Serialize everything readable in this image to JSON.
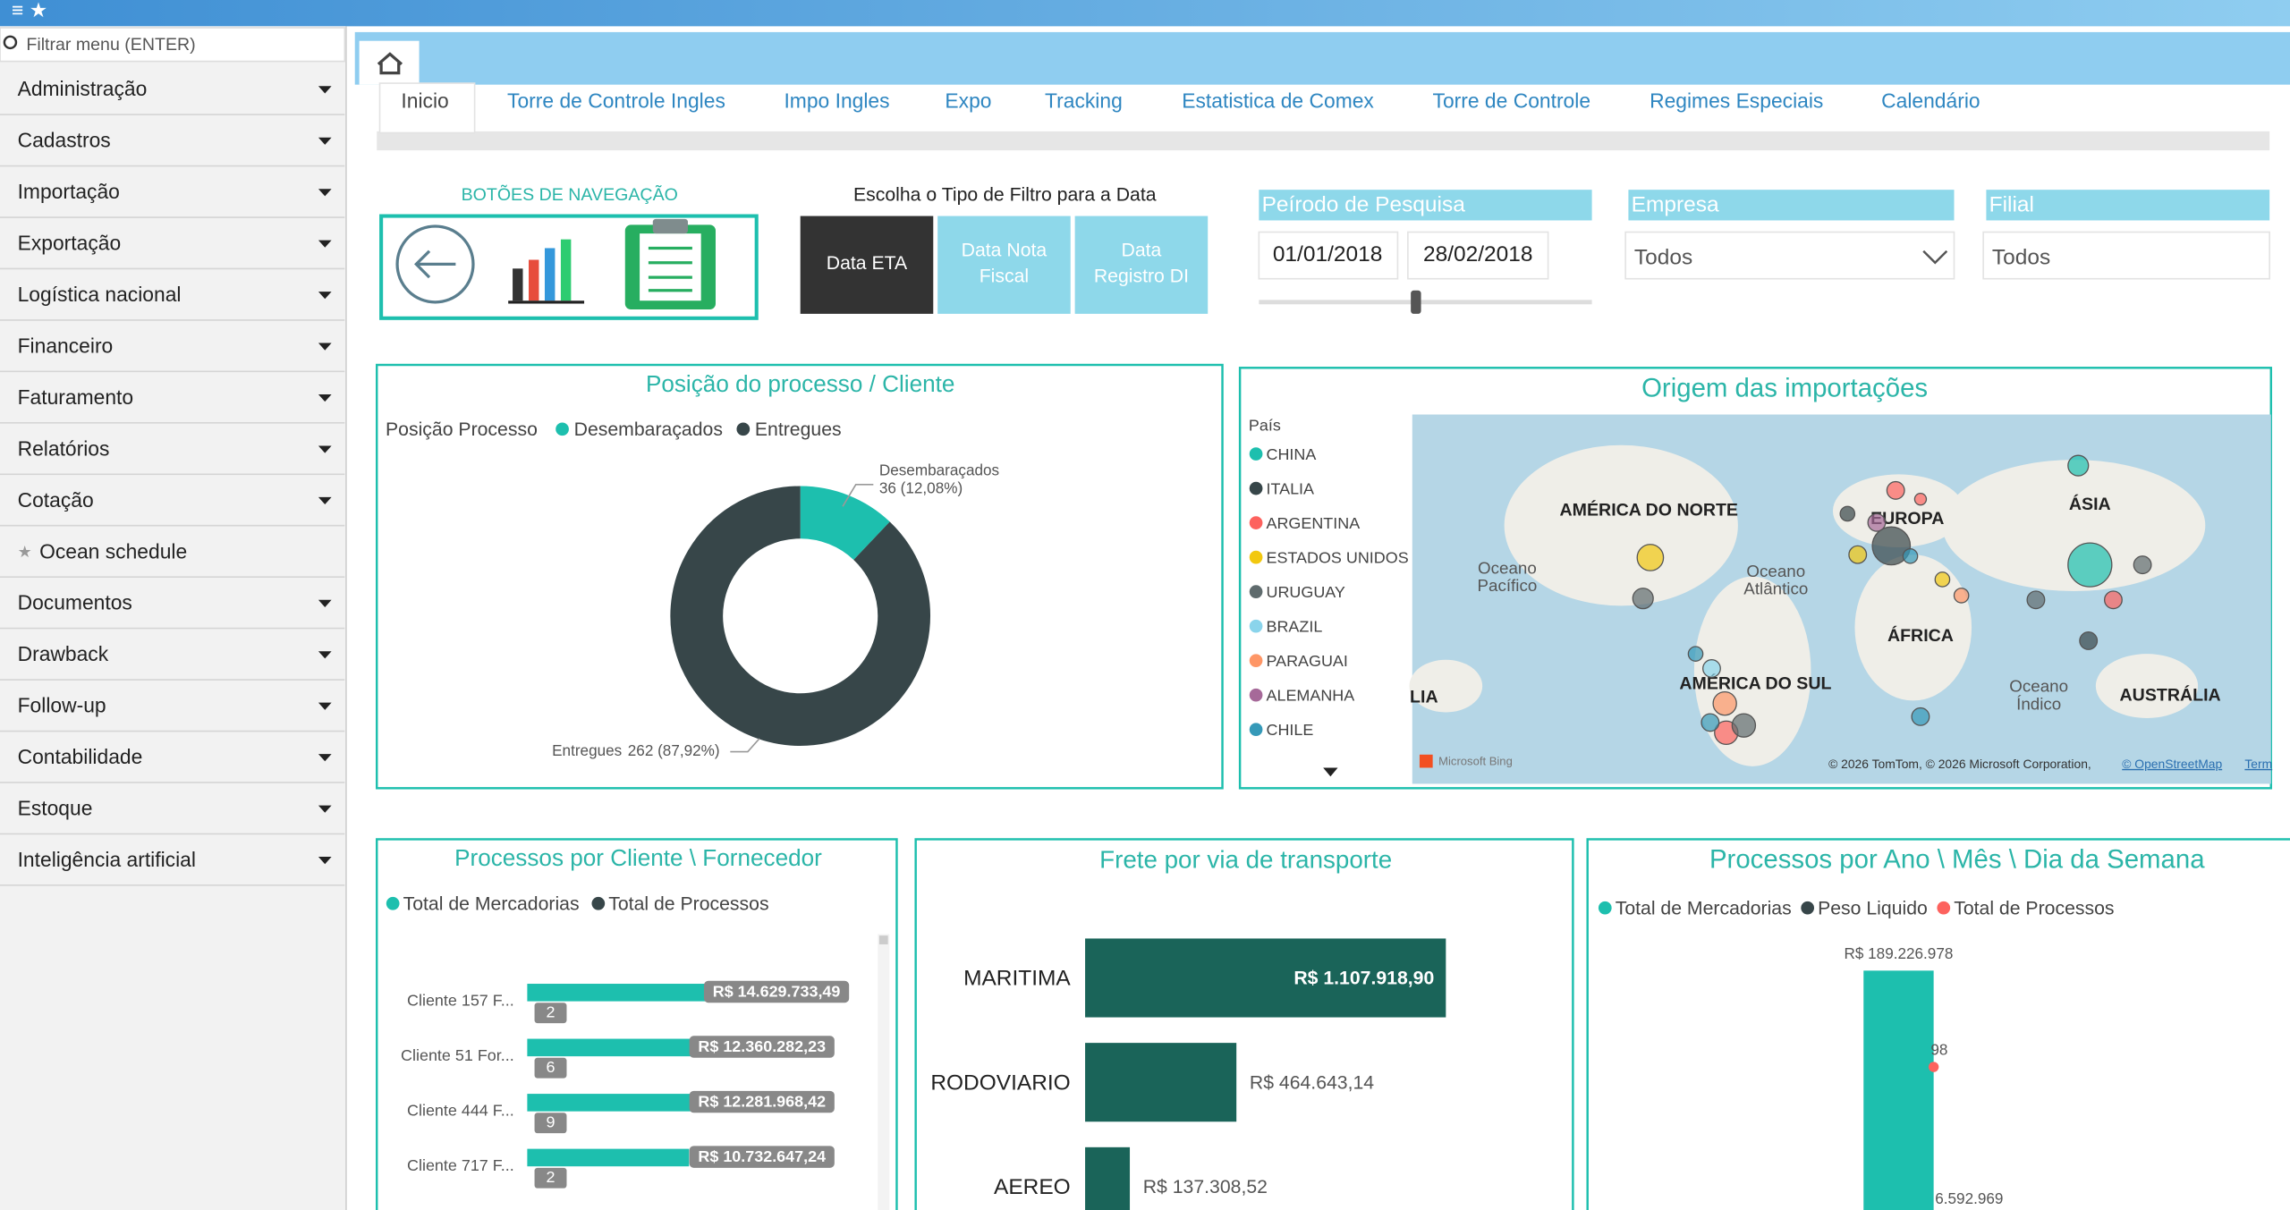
{
  "sidebar": {
    "search_placeholder": "Filtrar menu (ENTER)",
    "items": [
      "Administração",
      "Cadastros",
      "Importação",
      "Exportação",
      "Logística nacional",
      "Financeiro",
      "Faturamento",
      "Relatórios",
      "Cotação",
      "Ocean schedule",
      "Documentos",
      "Drawback",
      "Follow-up",
      "Contabilidade",
      "Estoque",
      "Inteligência artificial"
    ]
  },
  "tabs": [
    "Inicio",
    "Torre de Controle Ingles",
    "Impo Ingles",
    "Expo",
    "Tracking",
    "Estatistica de Comex",
    "Torre de Controle",
    "Regimes Especiais",
    "Calendário"
  ],
  "nav_buttons": {
    "title": "BOTÕES DE NAVEGAÇÃO"
  },
  "date_filter": {
    "title": "Escolha o Tipo de Filtro para a Data",
    "options": [
      [
        "Data ETA"
      ],
      [
        "Data Nota",
        "Fiscal"
      ],
      [
        "Data",
        "Registro DI"
      ]
    ]
  },
  "period": {
    "label": "Peírodo de Pesquisa",
    "start": "01/01/2018",
    "end": "28/02/2018"
  },
  "company": {
    "label": "Empresa",
    "value": "Todos"
  },
  "branch": {
    "label": "Filial",
    "value": "Todos"
  },
  "donut": {
    "title": "Posição do processo / Cliente",
    "legend_title": "Posição Processo",
    "series": [
      {
        "name": "Desembaraçados",
        "value": 36,
        "label": "36 (12,08%)",
        "color": "#1dbfae"
      },
      {
        "name": "Entregues",
        "value": 262,
        "label": "262 (87,92%)",
        "color": "#374649"
      }
    ]
  },
  "map": {
    "title": "Origem das importações",
    "legend_title": "País",
    "countries": [
      {
        "name": "CHINA",
        "color": "#1dbfae"
      },
      {
        "name": "ITALIA",
        "color": "#374649"
      },
      {
        "name": "ARGENTINA",
        "color": "#fd625e"
      },
      {
        "name": "ESTADOS UNIDOS",
        "color": "#f2c80f"
      },
      {
        "name": "URUGUAY",
        "color": "#5f6b6d"
      },
      {
        "name": "BRAZIL",
        "color": "#8ad4eb"
      },
      {
        "name": "PARAGUAI",
        "color": "#fe9666"
      },
      {
        "name": "ALEMANHA",
        "color": "#a66999"
      },
      {
        "name": "CHILE",
        "color": "#3599b8"
      }
    ],
    "regions": [
      "AMÉRICA DO NORTE",
      "EUROPA",
      "ÁSIA",
      "ÁFRICA",
      "AMÉRICA DO SUL",
      "AUSTRÁLIA",
      "LIA",
      "Oceano Pacífico",
      "Oceano Atlântico",
      "Oceano Índico"
    ],
    "bing": "Microsoft Bing",
    "attribution": "© 2026 TomTom, © 2026 Microsoft Corporation,",
    "link": "© OpenStreetMap",
    "terms": "Term"
  },
  "clients": {
    "title": "Processos por Cliente \\ Fornecedor",
    "legend": [
      {
        "name": "Total de Mercadorias",
        "color": "#1dbfae"
      },
      {
        "name": "Total de Processos",
        "color": "#374649"
      }
    ],
    "rows": [
      {
        "name": "Cliente 157 F...",
        "value": 14629733.49,
        "label": "R$ 14.629.733,49",
        "count": 2
      },
      {
        "name": "Cliente 51 For...",
        "value": 12360282.23,
        "label": "R$ 12.360.282,23",
        "count": 6
      },
      {
        "name": "Cliente 444 F...",
        "value": 12281968.42,
        "label": "R$ 12.281.968,42",
        "count": 9
      },
      {
        "name": "Cliente 717 F...",
        "value": 10732647.24,
        "label": "R$ 10.732.647,24",
        "count": 2
      }
    ]
  },
  "freight": {
    "title": "Frete por via de transporte",
    "rows": [
      {
        "name": "MARITIMA",
        "value": 1107918.9,
        "label": "R$ 1.107.918,90"
      },
      {
        "name": "RODOVIARIO",
        "value": 464643.14,
        "label": "R$ 464.643,14"
      },
      {
        "name": "AEREO",
        "value": 137308.52,
        "label": "R$ 137.308,52"
      }
    ]
  },
  "yearly": {
    "title": "Processos por Ano \\ Mês \\ Dia da Semana",
    "legend": [
      {
        "name": "Total de Mercadorias",
        "color": "#1dbfae"
      },
      {
        "name": "Peso Liquido",
        "color": "#374649"
      },
      {
        "name": "Total de Processos",
        "color": "#fd625e"
      }
    ],
    "bar_label": "R$ 189.226.978",
    "point_label": "98",
    "weight_label": "6.592.969"
  }
}
